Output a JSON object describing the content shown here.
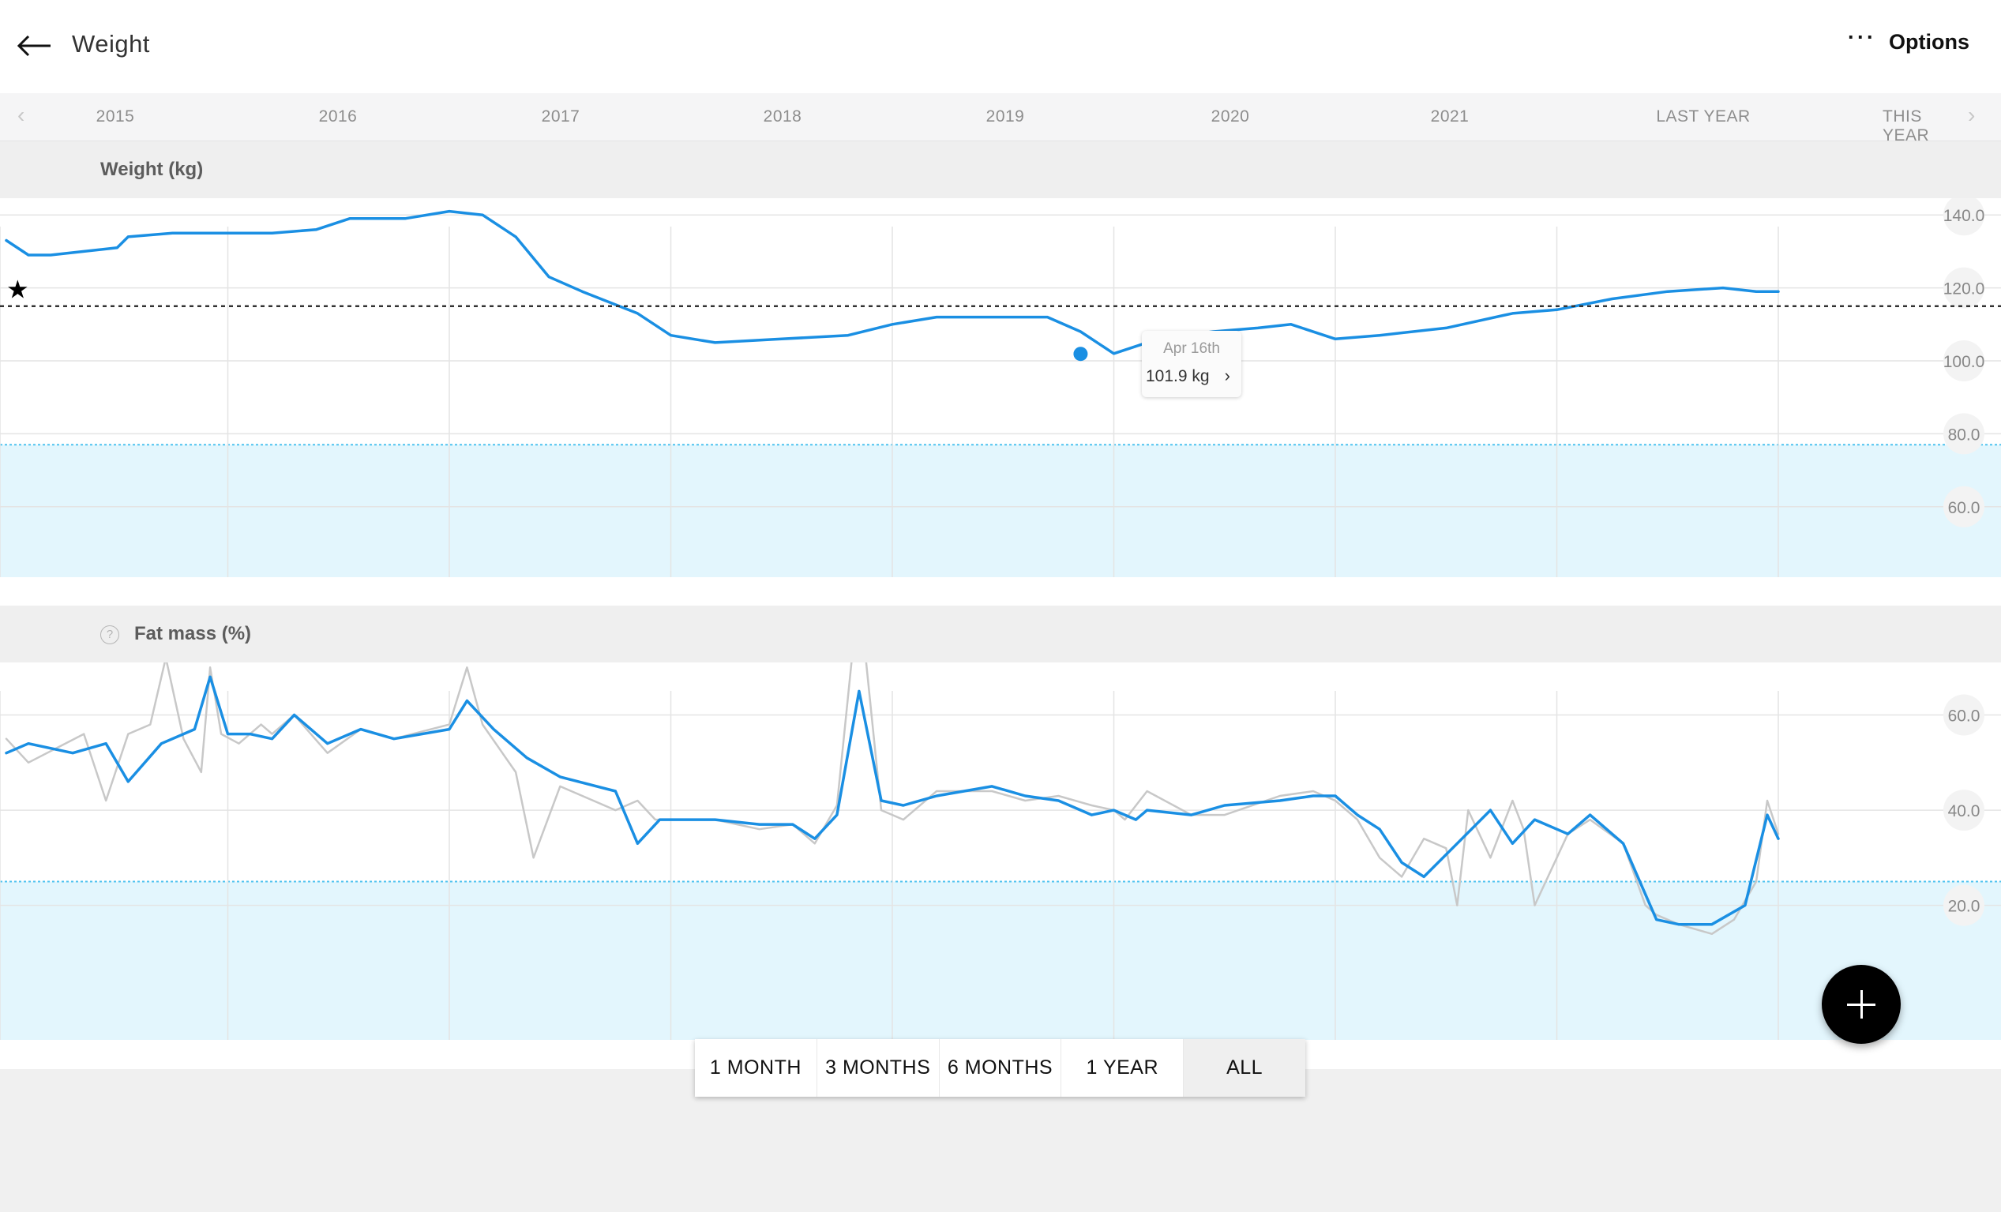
{
  "header": {
    "title": "Weight",
    "options_label": "Options",
    "options_icon": "more-dots-icon",
    "back_icon": "arrow-left-icon"
  },
  "timeline": {
    "years": [
      "2015",
      "2016",
      "2017",
      "2018",
      "2019",
      "2020",
      "2021",
      "LAST YEAR",
      "THIS YEAR"
    ],
    "prev_icon": "chevron-left-icon",
    "next_icon": "chevron-right-icon"
  },
  "weight_section": {
    "label": "Weight (kg)"
  },
  "fat_section": {
    "label": "Fat mass (%)",
    "help_icon": "question-circle-icon"
  },
  "tooltip": {
    "date": "Apr 16th",
    "value": "101.9 kg",
    "chevron": "›"
  },
  "range_buttons": [
    "1 MONTH",
    "3 MONTHS",
    "6 MONTHS",
    "1 YEAR",
    "ALL"
  ],
  "active_range": "ALL",
  "fab": {
    "icon": "plus-icon"
  },
  "colors": {
    "line": "#1a8fe3",
    "raw_line": "#c8c8c8",
    "goal_line": "#333333",
    "normal_band": "#e3f6fd",
    "band_border": "#4fc3ef"
  },
  "chart_data": [
    {
      "type": "line",
      "title": "Weight (kg)",
      "ylim": [
        50,
        150
      ],
      "y_ticks": [
        "140.0",
        "120.0",
        "100.0",
        "80.0",
        "60.0"
      ],
      "x_ticks": [
        "2015",
        "2016",
        "2017",
        "2018",
        "2019",
        "2020",
        "2021",
        "LAST YEAR",
        "THIS YEAR"
      ],
      "goal": 115,
      "normal_range_upper": 77,
      "marker_icon": "star-icon",
      "selected_point": {
        "date": "Apr 16th",
        "value": 101.9
      },
      "series": [
        {
          "x": [
            2015.0,
            2015.1,
            2015.2,
            2015.35,
            2015.5,
            2015.55,
            2015.75,
            2016.0,
            2016.2,
            2016.4,
            2016.55,
            2016.8,
            2017.0,
            2017.15,
            2017.3,
            2017.45,
            2017.6,
            2017.85,
            2018.0,
            2018.2,
            2018.5,
            2018.8,
            2019.0,
            2019.2,
            2019.5,
            2019.7,
            2019.85,
            2020.0,
            2020.2,
            2020.45,
            2020.65,
            2020.8,
            2021.0,
            2021.2,
            2021.5,
            2021.8,
            2022.0,
            2022.25,
            2022.5,
            2022.75,
            2022.9,
            2023.0
          ],
          "values": [
            133,
            129,
            129,
            130,
            131,
            134,
            135,
            135,
            135,
            136,
            139,
            139,
            141,
            140,
            134,
            123,
            119,
            113,
            107,
            105,
            106,
            107,
            110,
            112,
            112,
            112,
            108,
            102,
            106,
            108,
            109,
            110,
            106,
            107,
            109,
            113,
            114,
            117,
            119,
            120,
            119,
            119
          ]
        }
      ]
    },
    {
      "type": "line",
      "title": "Fat mass (%)",
      "ylim": [
        5,
        80
      ],
      "y_ticks": [
        "60.0",
        "40.0",
        "20.0"
      ],
      "x_ticks": [
        "2015",
        "2016",
        "2017",
        "2018",
        "2019",
        "2020",
        "2021",
        "LAST YEAR",
        "THIS YEAR"
      ],
      "normal_range_upper": 25,
      "series": [
        {
          "name": "smoothed",
          "x": [
            2015.0,
            2015.1,
            2015.3,
            2015.45,
            2015.55,
            2015.7,
            2015.85,
            2015.92,
            2016.0,
            2016.1,
            2016.2,
            2016.3,
            2016.45,
            2016.6,
            2016.75,
            2017.0,
            2017.08,
            2017.2,
            2017.35,
            2017.5,
            2017.75,
            2017.85,
            2017.95,
            2018.2,
            2018.4,
            2018.55,
            2018.65,
            2018.75,
            2018.85,
            2018.95,
            2019.05,
            2019.2,
            2019.45,
            2019.6,
            2019.75,
            2019.9,
            2020.0,
            2020.1,
            2020.15,
            2020.35,
            2020.5,
            2020.75,
            2020.9,
            2021.0,
            2021.1,
            2021.2,
            2021.3,
            2021.4,
            2021.55,
            2021.7,
            2021.8,
            2021.9,
            2022.05,
            2022.15,
            2022.3,
            2022.45,
            2022.55,
            2022.7,
            2022.85,
            2022.95,
            2023.0
          ],
          "values": [
            52,
            54,
            52,
            54,
            46,
            54,
            57,
            68,
            56,
            56,
            55,
            60,
            54,
            57,
            55,
            57,
            63,
            57,
            51,
            47,
            44,
            33,
            38,
            38,
            37,
            37,
            34,
            39,
            65,
            42,
            41,
            43,
            45,
            43,
            42,
            39,
            40,
            38,
            40,
            39,
            41,
            42,
            43,
            43,
            39,
            36,
            29,
            26,
            33,
            40,
            33,
            38,
            35,
            39,
            33,
            17,
            16,
            16,
            20,
            39,
            34
          ]
        },
        {
          "name": "raw",
          "x": [
            2015.0,
            2015.1,
            2015.35,
            2015.45,
            2015.55,
            2015.65,
            2015.72,
            2015.8,
            2015.88,
            2015.92,
            2015.97,
            2016.05,
            2016.15,
            2016.2,
            2016.3,
            2016.45,
            2016.6,
            2016.75,
            2017.0,
            2017.08,
            2017.15,
            2017.3,
            2017.38,
            2017.5,
            2017.75,
            2017.85,
            2017.93,
            2018.2,
            2018.4,
            2018.55,
            2018.65,
            2018.75,
            2018.82,
            2018.88,
            2018.95,
            2019.05,
            2019.2,
            2019.45,
            2019.6,
            2019.75,
            2019.9,
            2020.0,
            2020.05,
            2020.15,
            2020.35,
            2020.5,
            2020.75,
            2020.9,
            2021.0,
            2021.1,
            2021.2,
            2021.3,
            2021.4,
            2021.5,
            2021.55,
            2021.6,
            2021.7,
            2021.8,
            2021.85,
            2021.9,
            2022.05,
            2022.15,
            2022.3,
            2022.4,
            2022.45,
            2022.55,
            2022.7,
            2022.8,
            2022.9,
            2022.95,
            2023.0
          ],
          "values": [
            55,
            50,
            56,
            42,
            56,
            58,
            72,
            55,
            48,
            70,
            56,
            54,
            58,
            56,
            60,
            52,
            57,
            55,
            58,
            70,
            58,
            48,
            30,
            45,
            40,
            42,
            38,
            38,
            36,
            37,
            33,
            41,
            73,
            72,
            40,
            38,
            44,
            44,
            42,
            43,
            41,
            40,
            38,
            44,
            39,
            39,
            43,
            44,
            42,
            38,
            30,
            26,
            34,
            32,
            20,
            40,
            30,
            42,
            36,
            20,
            35,
            38,
            33,
            20,
            18,
            16,
            14,
            17,
            25,
            42,
            35
          ]
        }
      ]
    }
  ]
}
